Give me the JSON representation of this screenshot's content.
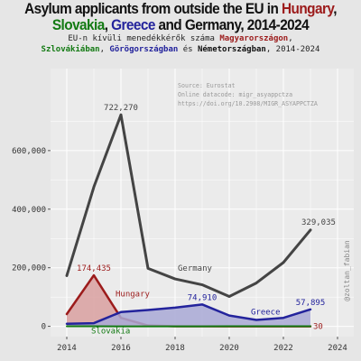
{
  "title": {
    "prefix": "Asylum applicants from outside the EU in ",
    "hungary": "Hungary",
    "comma": ",",
    "slovakia": "Slovakia",
    "comma2": ", ",
    "greece": "Greece",
    "middle": " and ",
    "germany": "Germany",
    "suffix": ", 2014-2024"
  },
  "subtitle": {
    "prefix": "EU-n kívüli menedékkérők száma ",
    "hungary": "Magyarországon",
    "comma": ",",
    "slovakia": "Szlovákiában",
    "comma2": ", ",
    "greece": "Görögországban",
    "middle": " és ",
    "germany": "Németországban",
    "suffix": ", 2014-2024"
  },
  "source_lines": [
    "Source: Eurostat",
    "Online datacode: migr_asyappctza",
    "https://doi.org/10.2908/MIGR_ASYAPPCTZA"
  ],
  "watermark": "@zoltan_fabian",
  "colors": {
    "background": "#e6e6e6",
    "panel": "#ebebeb",
    "grid": "#ffffff",
    "germany": "#444444",
    "hungary": "#9c1b1b",
    "hungary_fill": "#d9a0a0",
    "greece": "#23239c",
    "greece_fill": "#a9a9d6",
    "slovakia": "#137a13",
    "text": "#333333"
  },
  "chart_data": {
    "type": "line",
    "xlim": [
      2013.4,
      2024.6
    ],
    "ylim": [
      -35000,
      880000
    ],
    "x_ticks": [
      2014,
      2016,
      2018,
      2020,
      2022,
      2024
    ],
    "y_ticks": [
      0,
      200000,
      400000,
      600000
    ],
    "y_tick_labels": [
      "0",
      "200,000",
      "400,000",
      "600,000"
    ],
    "grid": true,
    "series": [
      {
        "name": "Germany",
        "key": "germany",
        "x": [
          2014,
          2015,
          2016,
          2017,
          2018,
          2019,
          2020,
          2021,
          2022,
          2023
        ],
        "values": [
          173000,
          476000,
          722270,
          198000,
          162000,
          142000,
          102000,
          148000,
          218000,
          329035
        ],
        "area": false,
        "linewidth": 3
      },
      {
        "name": "Hungary",
        "key": "hungary",
        "x": [
          2014,
          2015,
          2016,
          2017,
          2018,
          2019,
          2020,
          2021,
          2022,
          2023
        ],
        "values": [
          42000,
          174435,
          29000,
          3000,
          600,
          500,
          100,
          40,
          45,
          30
        ],
        "area": true,
        "linewidth": 2.5
      },
      {
        "name": "Greece",
        "key": "greece",
        "x": [
          2014,
          2015,
          2016,
          2017,
          2018,
          2019,
          2020,
          2021,
          2022,
          2023
        ],
        "values": [
          9000,
          11000,
          49000,
          56000,
          64000,
          74910,
          37000,
          22000,
          29000,
          57895
        ],
        "area": true,
        "linewidth": 2.5
      },
      {
        "name": "Slovakia",
        "key": "slovakia",
        "x": [
          2014,
          2015,
          2016,
          2017,
          2018,
          2019,
          2020,
          2021,
          2022,
          2023
        ],
        "values": [
          300,
          300,
          100,
          150,
          150,
          200,
          250,
          350,
          500,
          400
        ],
        "area": false,
        "linewidth": 2
      }
    ],
    "annotations": [
      {
        "label": "722,270",
        "series": "germany",
        "x": 2016,
        "y": 722270
      },
      {
        "label": "329,035",
        "series": "germany",
        "x": 2023,
        "y": 329035
      },
      {
        "label": "174,435",
        "series": "hungary",
        "x": 2015,
        "y": 174435
      },
      {
        "label": "74,910",
        "series": "greece",
        "x": 2019,
        "y": 74910
      },
      {
        "label": "57,895",
        "series": "greece",
        "x": 2023,
        "y": 57895
      },
      {
        "label": "30",
        "series": "hungary",
        "x": 2023,
        "y": 30
      }
    ],
    "series_labels": [
      {
        "label": "Germany",
        "series": "germany",
        "x": 2018.1,
        "y": 190000
      },
      {
        "label": "Hungary",
        "series": "hungary",
        "x": 2015.8,
        "y": 102000
      },
      {
        "label": "Greece",
        "series": "greece",
        "x": 2020.8,
        "y": 40000
      },
      {
        "label": "Slovakia",
        "series": "slovakia",
        "x": 2014.9,
        "y": -24000
      }
    ]
  }
}
